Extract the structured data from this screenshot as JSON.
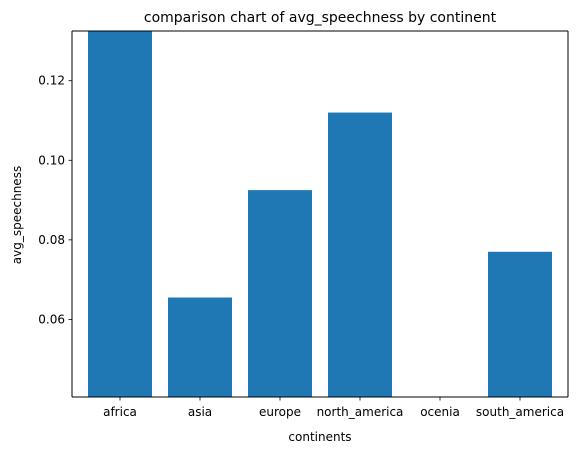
{
  "chart_data": {
    "type": "bar",
    "title": "comparison chart of avg_speechness by continent",
    "xlabel": "continents",
    "ylabel": "avg_speechness",
    "categories": [
      "africa",
      "asia",
      "europe",
      "north_america",
      "ocenia",
      "south_america"
    ],
    "values": [
      0.1345,
      0.0655,
      0.0925,
      0.112,
      0.0405,
      0.077
    ],
    "ylim": [
      0.0405,
      0.1325
    ],
    "yticks": [
      0.06,
      0.08,
      0.1,
      0.12
    ],
    "ytick_labels": [
      "0.06",
      "0.08",
      "0.10",
      "0.12"
    ],
    "bar_color": "#1f77b4",
    "grid": false
  }
}
